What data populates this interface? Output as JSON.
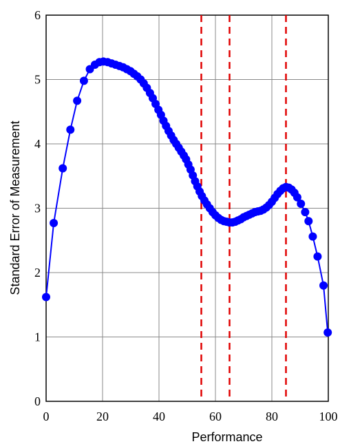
{
  "chart_data": {
    "type": "line",
    "xlabel": "Performance",
    "ylabel": "Standard Error of Measurement",
    "xlim": [
      0,
      100
    ],
    "ylim": [
      0,
      6
    ],
    "xticks": [
      0,
      20,
      40,
      60,
      80,
      100
    ],
    "yticks": [
      0,
      1,
      2,
      3,
      4,
      5,
      6
    ],
    "grid": true,
    "markers": true,
    "reference_lines": [
      55,
      65,
      85
    ],
    "reference_color": "#e00000",
    "series": [
      {
        "color": "#0000ff",
        "x": [
          0,
          2.7,
          5.9,
          8.6,
          11,
          13.4,
          15.5,
          17.3,
          18.9,
          20.3,
          21.8,
          23.2,
          24.6,
          26,
          27.3,
          28.6,
          29.9,
          31.1,
          32.3,
          33.5,
          34.6,
          35.7,
          36.8,
          37.8,
          38.8,
          39.8,
          40.7,
          41.6,
          42.5,
          43.4,
          44.3,
          45.2,
          46.1,
          47,
          47.9,
          48.8,
          49.6,
          50.4,
          51.2,
          52,
          52.8,
          53.6,
          54.4,
          55.2,
          56.1,
          57,
          58,
          59,
          60,
          61,
          62,
          63,
          64,
          65,
          66,
          67,
          68,
          69,
          70,
          71,
          72,
          73,
          74,
          75,
          76,
          77,
          78,
          79,
          80,
          81,
          82,
          83,
          84,
          85,
          86,
          87,
          88,
          89,
          90.3,
          91.8,
          93,
          94.5,
          96.2,
          98.3,
          99.8
        ],
        "values": [
          1.62,
          2.77,
          3.62,
          4.22,
          4.67,
          4.98,
          5.16,
          5.23,
          5.27,
          5.28,
          5.27,
          5.25,
          5.23,
          5.21,
          5.19,
          5.16,
          5.13,
          5.09,
          5.05,
          5.0,
          4.94,
          4.87,
          4.79,
          4.71,
          4.62,
          4.53,
          4.45,
          4.36,
          4.28,
          4.2,
          4.13,
          4.06,
          4.0,
          3.94,
          3.88,
          3.82,
          3.76,
          3.68,
          3.6,
          3.51,
          3.42,
          3.34,
          3.26,
          3.19,
          3.12,
          3.06,
          3.0,
          2.94,
          2.89,
          2.85,
          2.82,
          2.8,
          2.79,
          2.78,
          2.78,
          2.79,
          2.81,
          2.83,
          2.86,
          2.88,
          2.9,
          2.92,
          2.94,
          2.95,
          2.96,
          2.98,
          3.01,
          3.05,
          3.1,
          3.16,
          3.22,
          3.27,
          3.31,
          3.33,
          3.32,
          3.29,
          3.24,
          3.17,
          3.07,
          2.94,
          2.8,
          2.56,
          2.25,
          1.8,
          1.07
        ]
      }
    ]
  }
}
